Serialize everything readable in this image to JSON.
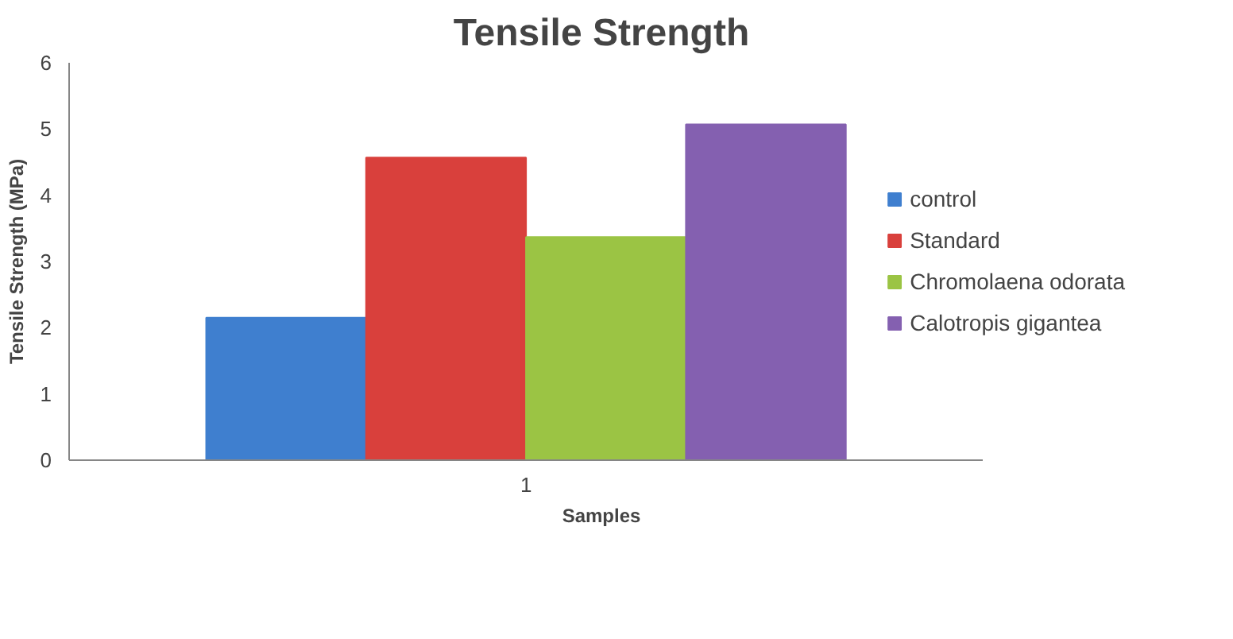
{
  "chart_data": {
    "type": "bar",
    "title": "Tensile Strength",
    "xlabel": "Samples",
    "ylabel": "Tensile Strength (MPa)",
    "categories": [
      "1"
    ],
    "series": [
      {
        "name": "control",
        "color": "#3f7fcf",
        "values": [
          2.15
        ]
      },
      {
        "name": "Standard",
        "color": "#d9403c",
        "values": [
          4.57
        ]
      },
      {
        "name": "Chromolaena odorata",
        "color": "#9bc444",
        "values": [
          3.37
        ]
      },
      {
        "name": "Calotropis gigantea",
        "color": "#8460b0",
        "values": [
          5.07
        ]
      }
    ],
    "ylim": [
      0,
      6
    ],
    "yticks": [
      0,
      1,
      2,
      3,
      4,
      5,
      6
    ],
    "grid": false,
    "legend": "right"
  }
}
